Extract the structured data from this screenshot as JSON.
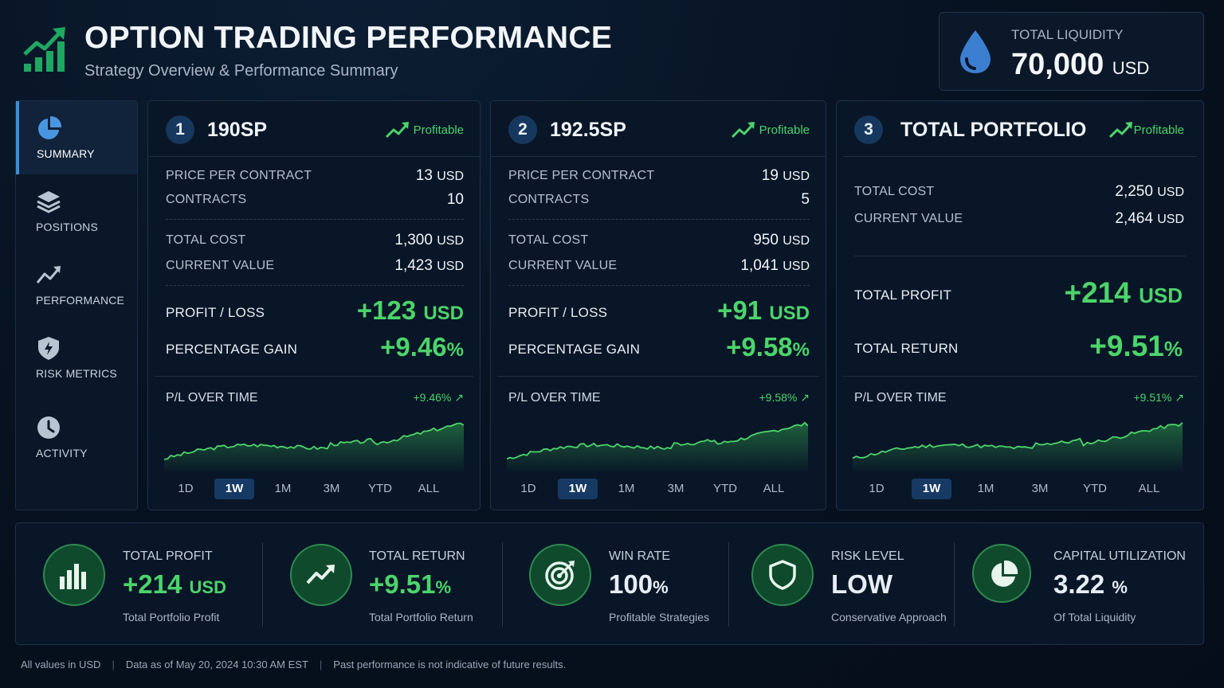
{
  "header": {
    "title": "OPTION TRADING PERFORMANCE",
    "subtitle": "Strategy Overview & Performance Summary"
  },
  "liquidity": {
    "label": "TOTAL LIQUIDITY",
    "value": "70,000",
    "unit": "USD"
  },
  "sidebar": {
    "items": [
      {
        "label": "SUMMARY",
        "icon": "pie-chart-icon",
        "active": true
      },
      {
        "label": "POSITIONS",
        "icon": "layers-icon",
        "active": false
      },
      {
        "label": "PERFORMANCE",
        "icon": "trend-line-icon",
        "active": false
      },
      {
        "label": "RISK METRICS",
        "icon": "shield-icon",
        "active": false
      },
      {
        "label": "ACTIVITY",
        "icon": "clock-icon",
        "active": false
      }
    ]
  },
  "cards": [
    {
      "num": "1",
      "name": "190SP",
      "status": "Profitable",
      "price_label": "PRICE PER CONTRACT",
      "price_value": "13",
      "price_unit": "USD",
      "contracts_label": "CONTRACTS",
      "contracts_value": "10",
      "cost_label": "TOTAL COST",
      "cost_value": "1,300",
      "cost_unit": "USD",
      "value_label": "CURRENT VALUE",
      "value_value": "1,423",
      "value_unit": "USD",
      "pl_label": "PROFIT / LOSS",
      "pl_value": "+123",
      "pl_unit": "USD",
      "pct_label": "PERCENTAGE GAIN",
      "pct_value": "+9.46",
      "pct_unit": "%",
      "chart_title": "P/L OVER TIME",
      "chart_gain": "+9.46% ↗"
    },
    {
      "num": "2",
      "name": "192.5SP",
      "status": "Profitable",
      "price_label": "PRICE PER CONTRACT",
      "price_value": "19",
      "price_unit": "USD",
      "contracts_label": "CONTRACTS",
      "contracts_value": "5",
      "cost_label": "TOTAL COST",
      "cost_value": "950",
      "cost_unit": "USD",
      "value_label": "CURRENT VALUE",
      "value_value": "1,041",
      "value_unit": "USD",
      "pl_label": "PROFIT / LOSS",
      "pl_value": "+91",
      "pl_unit": "USD",
      "pct_label": "PERCENTAGE GAIN",
      "pct_value": "+9.58",
      "pct_unit": "%",
      "chart_title": "P/L OVER TIME",
      "chart_gain": "+9.58% ↗"
    }
  ],
  "portfolio": {
    "num": "3",
    "name": "TOTAL PORTFOLIO",
    "status": "Profitable",
    "cost_label": "TOTAL COST",
    "cost_value": "2,250",
    "cost_unit": "USD",
    "value_label": "CURRENT VALUE",
    "value_value": "2,464",
    "value_unit": "USD",
    "profit_label": "TOTAL PROFIT",
    "profit_value": "+214",
    "profit_unit": "USD",
    "return_label": "TOTAL RETURN",
    "return_value": "+9.51",
    "return_unit": "%",
    "chart_title": "P/L OVER TIME",
    "chart_gain": "+9.51% ↗"
  },
  "ranges": [
    "1D",
    "1W",
    "1M",
    "3M",
    "YTD",
    "ALL"
  ],
  "active_range": "1W",
  "metrics": [
    {
      "label": "TOTAL PROFIT",
      "value": "+214",
      "unit": "USD",
      "sub": "Total Portfolio Profit",
      "icon": "bar-chart-icon"
    },
    {
      "label": "TOTAL RETURN",
      "value": "+9.51",
      "unit": "%",
      "sub": "Total Portfolio Return",
      "icon": "trend-up-icon"
    },
    {
      "label": "WIN RATE",
      "value": "100",
      "unit": "%",
      "sub": "Profitable Strategies",
      "icon": "target-icon"
    },
    {
      "label": "RISK LEVEL",
      "value": "LOW",
      "unit": "",
      "sub": "Conservative Approach",
      "icon": "shield-icon"
    },
    {
      "label": "CAPITAL UTILIZATION",
      "value": "3.22",
      "unit": "%",
      "sub": "Of Total Liquidity",
      "icon": "pie-chart-icon"
    }
  ],
  "footer": {
    "units": "All values in USD",
    "asof": "Data as of May 20, 2024 10:30 AM EST",
    "disclaimer": "Past performance is not indicative of future results."
  },
  "colors": {
    "accent_green": "#4cd46a",
    "accent_blue": "#3b8ed8",
    "background": "#06111f"
  }
}
